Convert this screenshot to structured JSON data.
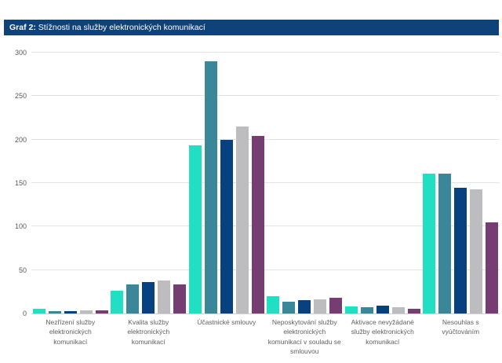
{
  "header": {
    "label_bold": "Graf 2:",
    "label_text": " Stížnosti na služby elektronických komunikací",
    "background": "#0f4279",
    "text_color": "#ffffff"
  },
  "chart_data": {
    "type": "bar",
    "title": "Graf 2: Stížnosti na služby elektronických komunikací",
    "categories": [
      "Nezřízení služby elektronických komunikací",
      "Kvalita služby elektronických komunikací",
      "Účastnické smlouvy",
      "Neposkytování služby elektronických komunikací v souladu se smlouvou",
      "Aktivace nevyžádané služby elektronických komunikací",
      "Nesouhlas s vyúčtováním"
    ],
    "series": [
      {
        "name": "teal",
        "color": "#21dfc2",
        "values": [
          5,
          26,
          193,
          20,
          8,
          161
        ]
      },
      {
        "name": "dark-teal",
        "color": "#3a8799",
        "values": [
          3,
          33,
          290,
          14,
          7,
          161
        ]
      },
      {
        "name": "navy",
        "color": "#07417f",
        "values": [
          3,
          36,
          200,
          15,
          9,
          145
        ]
      },
      {
        "name": "gray",
        "color": "#bdbdbf",
        "values": [
          4,
          38,
          215,
          16,
          7,
          143
        ]
      },
      {
        "name": "purple",
        "color": "#753d72",
        "values": [
          4,
          33,
          204,
          18,
          5,
          105
        ]
      }
    ],
    "xlabel": "",
    "ylabel": "",
    "ylim": [
      0,
      300
    ],
    "yticks": [
      0,
      50,
      100,
      150,
      200,
      250,
      300
    ],
    "grid": true,
    "legend": false,
    "colors": {
      "gridline": "#e3e3e3",
      "axis_line": "#cfcfcf",
      "tick_text": "#595959",
      "label_text": "#5e5e5e"
    }
  }
}
